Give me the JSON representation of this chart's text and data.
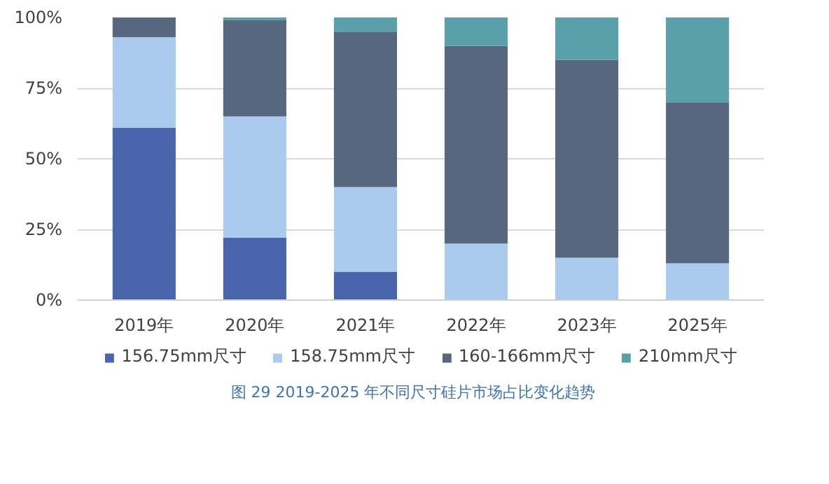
{
  "chart_data": {
    "type": "bar",
    "stacked": true,
    "categories": [
      "2019年",
      "2020年",
      "2021年",
      "2022年",
      "2023年",
      "2025年"
    ],
    "series": [
      {
        "name": "156.75mm尺寸",
        "color": "#4865ab",
        "values": [
          61,
          22,
          10,
          0,
          0,
          0
        ]
      },
      {
        "name": "158.75mm尺寸",
        "color": "#aacbee",
        "values": [
          32,
          43,
          30,
          20,
          15,
          13
        ]
      },
      {
        "name": "160-166mm尺寸",
        "color": "#57677f",
        "values": [
          7,
          34,
          55,
          70,
          70,
          57
        ]
      },
      {
        "name": "210mm尺寸",
        "color": "#59a0ab",
        "values": [
          0,
          1,
          5,
          10,
          15,
          30
        ]
      }
    ],
    "ylim": [
      0,
      100
    ],
    "yticks": [
      {
        "value": 0,
        "label": "0%"
      },
      {
        "value": 25,
        "label": "25%"
      },
      {
        "value": 50,
        "label": "50%"
      },
      {
        "value": 75,
        "label": "75%"
      },
      {
        "value": 100,
        "label": "100%"
      }
    ],
    "grid": "y",
    "legend": "bottom",
    "annotations": [
      "图 29   2019-2025 年不同尺寸硅片市场占比变化趋势"
    ]
  }
}
